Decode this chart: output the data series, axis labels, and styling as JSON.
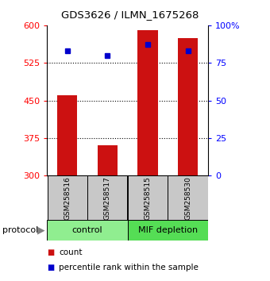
{
  "title": "GDS3626 / ILMN_1675268",
  "samples": [
    "GSM258516",
    "GSM258517",
    "GSM258515",
    "GSM258530"
  ],
  "counts": [
    460,
    360,
    590,
    575
  ],
  "percentiles": [
    83,
    80,
    87,
    83
  ],
  "y_min": 300,
  "y_max": 600,
  "y_ticks": [
    300,
    375,
    450,
    525,
    600
  ],
  "y2_ticks": [
    0,
    25,
    50,
    75,
    100
  ],
  "groups": [
    {
      "label": "control",
      "color": "#90EE90",
      "start": 0,
      "end": 2
    },
    {
      "label": "MIF depletion",
      "color": "#55DD55",
      "start": 2,
      "end": 4
    }
  ],
  "bar_color": "#CC1111",
  "dot_color": "#0000CC",
  "bar_width": 0.5,
  "legend_count_label": "count",
  "legend_pct_label": "percentile rank within the sample"
}
